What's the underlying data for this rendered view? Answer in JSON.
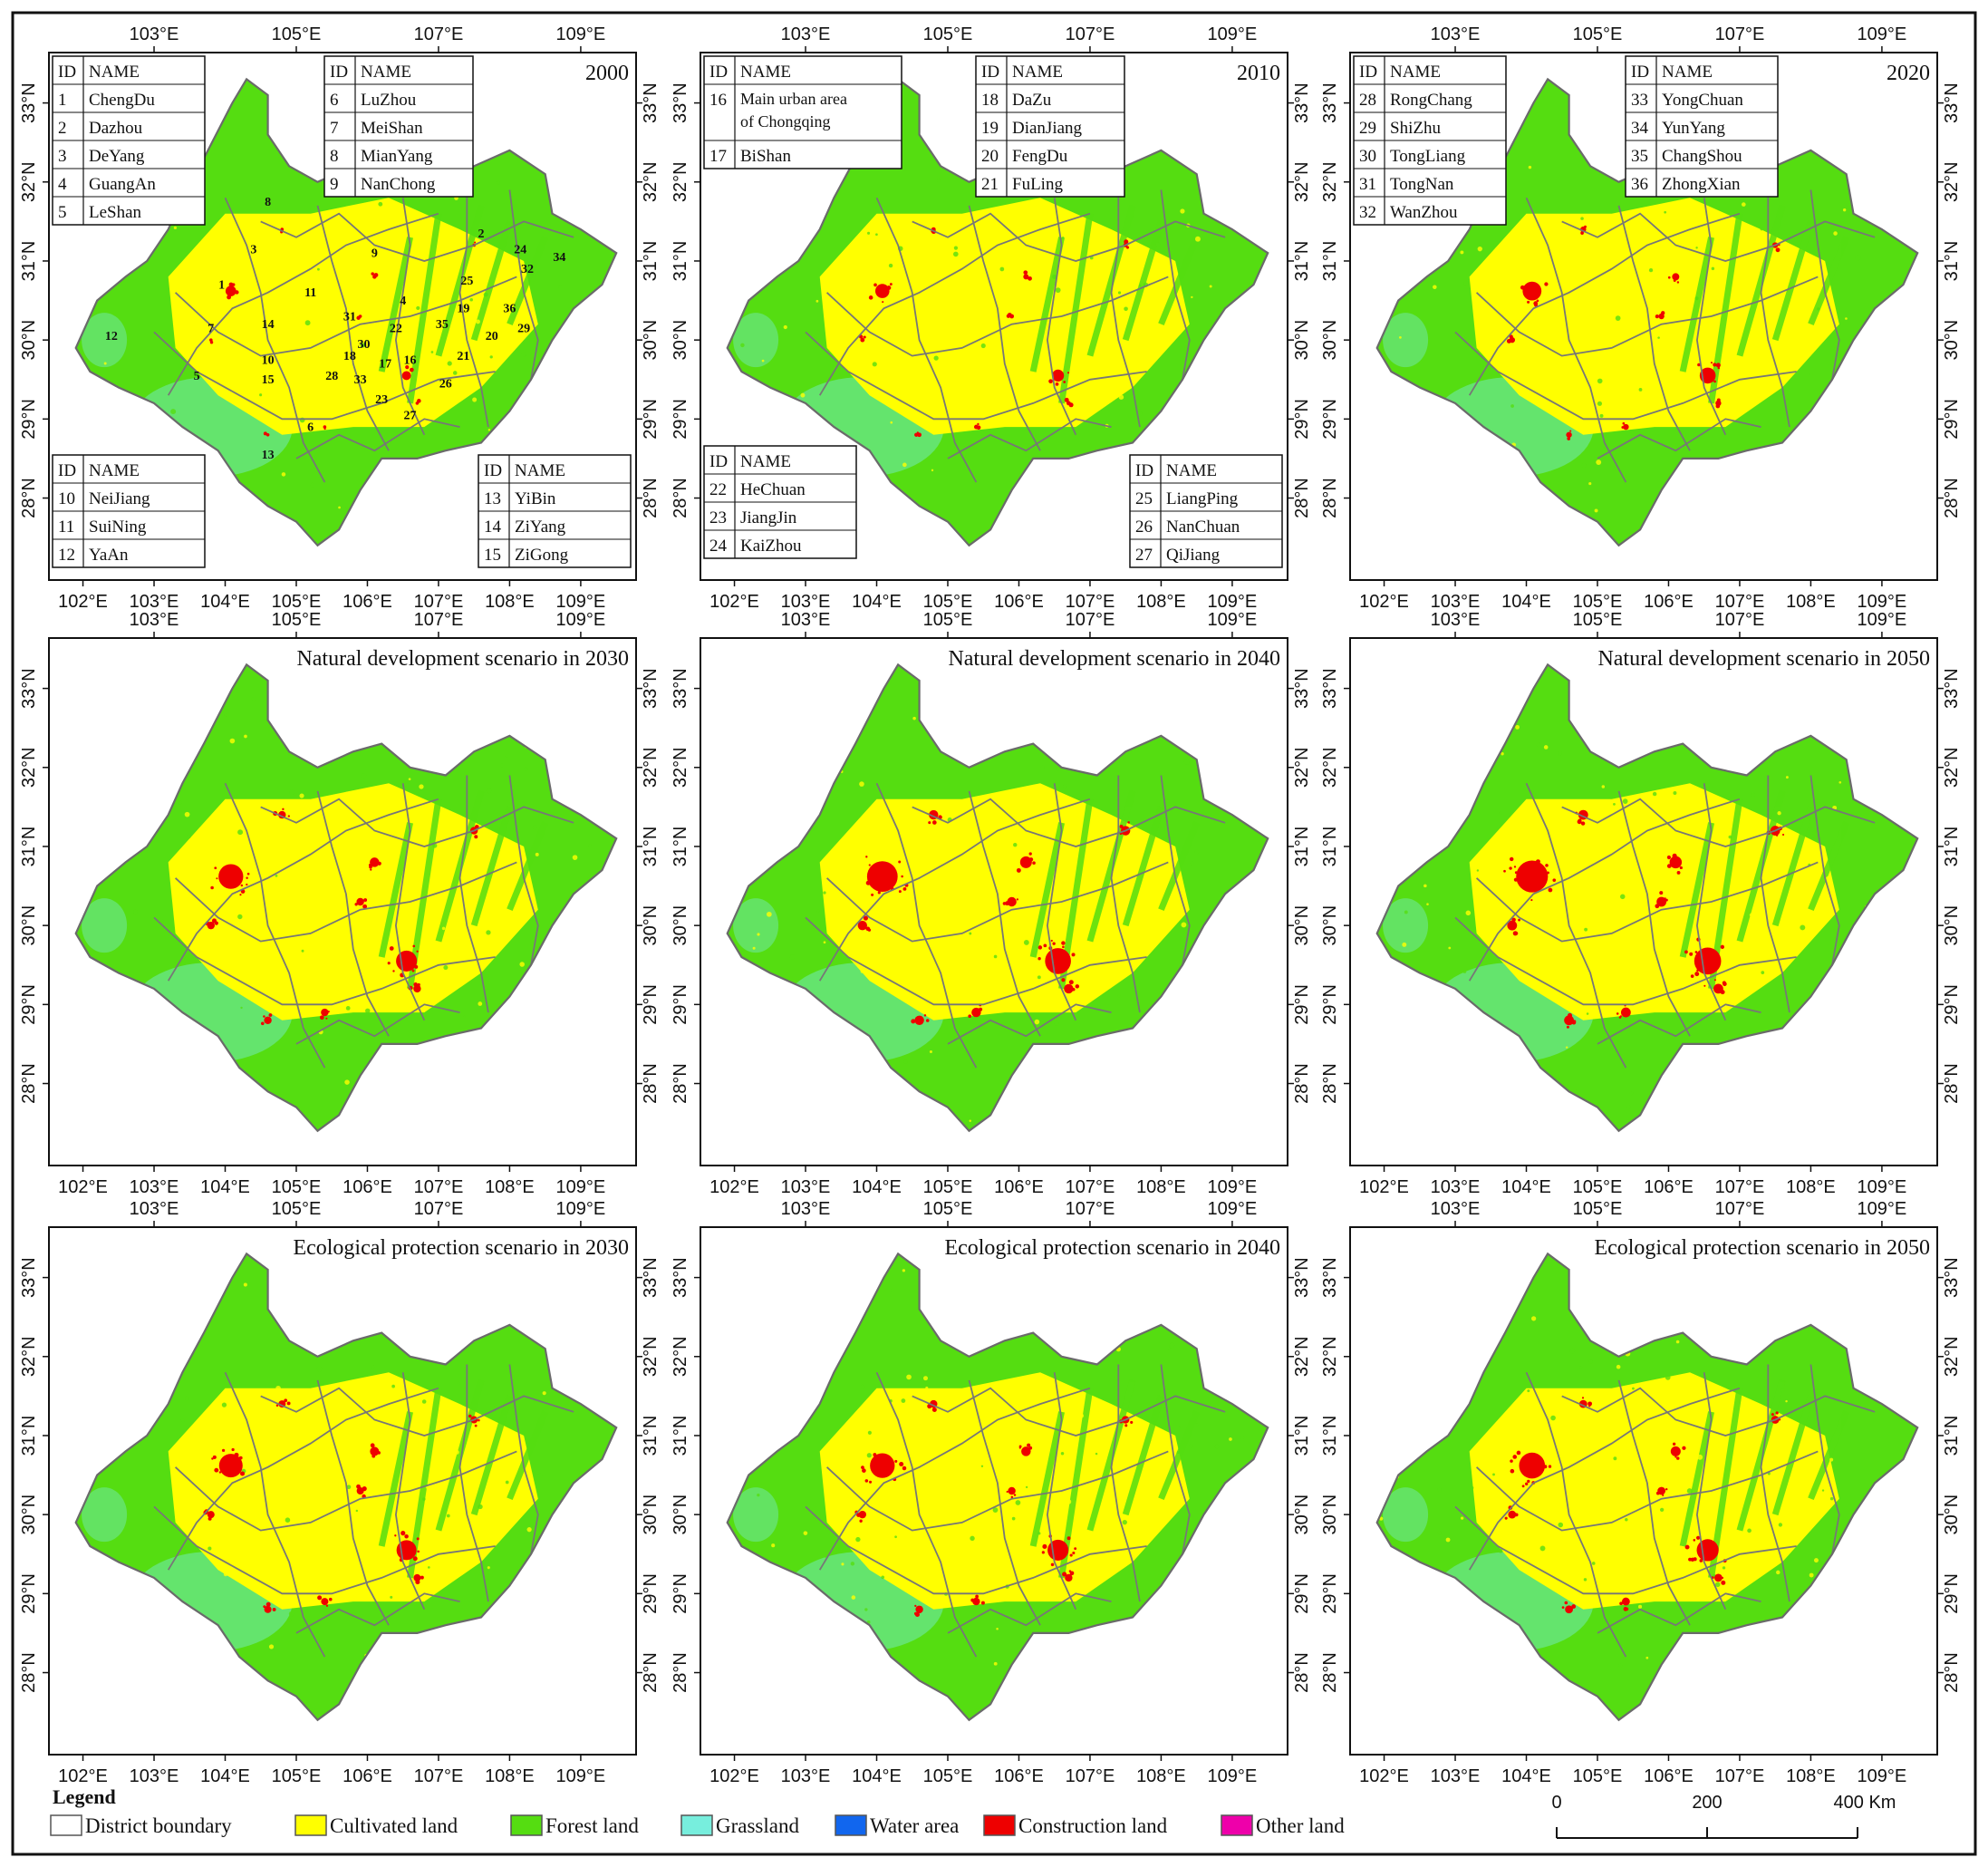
{
  "lon_ticks": [
    "102°E",
    "103°E",
    "104°E",
    "105°E",
    "106°E",
    "107°E",
    "108°E",
    "109°E"
  ],
  "lon_ticks_top": [
    "103°E",
    "105°E",
    "107°E",
    "109°E"
  ],
  "lat_ticks": [
    "28°N",
    "29°N",
    "30°N",
    "31°N",
    "32°N",
    "33°N"
  ],
  "panels": [
    {
      "title": "2000",
      "tables": [
        {
          "header": [
            "ID",
            "NAME"
          ],
          "rows": [
            [
              "1",
              "ChengDu"
            ],
            [
              "2",
              "Dazhou"
            ],
            [
              "3",
              "DeYang"
            ],
            [
              "4",
              "GuangAn"
            ],
            [
              "5",
              "LeShan"
            ]
          ]
        },
        {
          "header": [
            "ID",
            "NAME"
          ],
          "rows": [
            [
              "6",
              "LuZhou"
            ],
            [
              "7",
              "MeiShan"
            ],
            [
              "8",
              "MianYang"
            ],
            [
              "9",
              "NanChong"
            ]
          ]
        },
        {
          "header": [
            "ID",
            "NAME"
          ],
          "rows": [
            [
              "10",
              "NeiJiang"
            ],
            [
              "11",
              "SuiNing"
            ],
            [
              "12",
              "YaAn"
            ]
          ]
        },
        {
          "header": [
            "ID",
            "NAME"
          ],
          "rows": [
            [
              "13",
              "YiBin"
            ],
            [
              "14",
              "ZiYang"
            ],
            [
              "15",
              "ZiGong"
            ]
          ]
        }
      ]
    },
    {
      "title": "2010",
      "tables": [
        {
          "header": [
            "ID",
            "NAME"
          ],
          "rows": [
            [
              "16",
              "Main urban area of Chongqing"
            ],
            [
              "17",
              "BiShan"
            ]
          ]
        },
        {
          "header": [
            "ID",
            "NAME"
          ],
          "rows": [
            [
              "18",
              "DaZu"
            ],
            [
              "19",
              "DianJiang"
            ],
            [
              "20",
              "FengDu"
            ],
            [
              "21",
              "FuLing"
            ]
          ]
        },
        {
          "header": [
            "ID",
            "NAME"
          ],
          "rows": [
            [
              "22",
              "HeChuan"
            ],
            [
              "23",
              "JiangJin"
            ],
            [
              "24",
              "KaiZhou"
            ]
          ]
        },
        {
          "header": [
            "ID",
            "NAME"
          ],
          "rows": [
            [
              "25",
              "LiangPing"
            ],
            [
              "26",
              "NanChuan"
            ],
            [
              "27",
              "QiJiang"
            ]
          ]
        }
      ]
    },
    {
      "title": "2020",
      "tables": [
        {
          "header": [
            "ID",
            "NAME"
          ],
          "rows": [
            [
              "28",
              "RongChang"
            ],
            [
              "29",
              "ShiZhu"
            ],
            [
              "30",
              "TongLiang"
            ],
            [
              "31",
              "TongNan"
            ],
            [
              "32",
              "WanZhou"
            ]
          ]
        },
        {
          "header": [
            "ID",
            "NAME"
          ],
          "rows": [
            [
              "33",
              "YongChuan"
            ],
            [
              "34",
              "YunYang"
            ],
            [
              "35",
              "ChangShou"
            ],
            [
              "36",
              "ZhongXian"
            ]
          ]
        }
      ]
    },
    {
      "title": "Natural development scenario in 2030",
      "tables": []
    },
    {
      "title": "Natural development scenario in 2040",
      "tables": []
    },
    {
      "title": "Natural development scenario in 2050",
      "tables": []
    },
    {
      "title": "Ecological protection scenario in 2030",
      "tables": []
    },
    {
      "title": "Ecological protection scenario in 2040",
      "tables": []
    },
    {
      "title": "Ecological protection scenario in 2050",
      "tables": []
    }
  ],
  "district_ids": [
    "1",
    "2",
    "3",
    "4",
    "5",
    "6",
    "7",
    "8",
    "9",
    "10",
    "11",
    "12",
    "13",
    "14",
    "15",
    "16",
    "17",
    "18",
    "19",
    "20",
    "21",
    "22",
    "23",
    "24",
    "25",
    "26",
    "27",
    "28",
    "29",
    "30",
    "31",
    "32",
    "33",
    "34",
    "35",
    "36"
  ],
  "legend": {
    "title": "Legend",
    "items": [
      {
        "label": "District boundary",
        "color": "#ffffff"
      },
      {
        "label": "Cultivated land",
        "color": "#ffff00"
      },
      {
        "label": "Forest land",
        "color": "#55dd11"
      },
      {
        "label": "Grassland",
        "color": "#77eedd"
      },
      {
        "label": "Water area",
        "color": "#1166ee"
      },
      {
        "label": "Construction land",
        "color": "#ee0000"
      },
      {
        "label": "Other land",
        "color": "#ee00aa"
      }
    ]
  },
  "scalebar": {
    "ticks": [
      "0",
      "200",
      "400 Km"
    ]
  }
}
